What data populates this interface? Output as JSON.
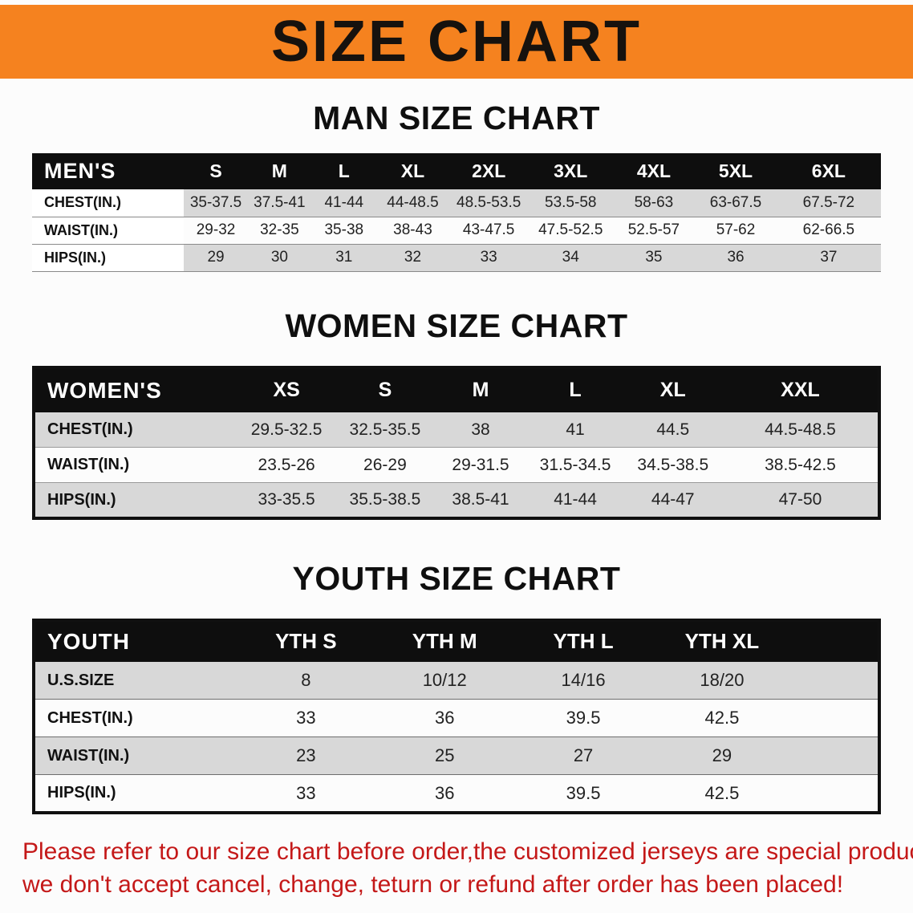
{
  "banner": {
    "title": "SIZE CHART",
    "bg_color": "#f5821f",
    "text_color": "#16120e"
  },
  "sections": [
    {
      "heading": "MAN SIZE CHART",
      "table": {
        "header": [
          "MEN'S",
          "S",
          "M",
          "L",
          "XL",
          "2XL",
          "3XL",
          "4XL",
          "5XL",
          "6XL"
        ],
        "rows": [
          [
            "CHEST(IN.)",
            "35-37.5",
            "37.5-41",
            "41-44",
            "44-48.5",
            "48.5-53.5",
            "53.5-58",
            "58-63",
            "63-67.5",
            "67.5-72"
          ],
          [
            "WAIST(IN.)",
            "29-32",
            "32-35",
            "35-38",
            "38-43",
            "43-47.5",
            "47.5-52.5",
            "52.5-57",
            "57-62",
            "62-66.5"
          ],
          [
            "HIPS(IN.)",
            "29",
            "30",
            "31",
            "32",
            "33",
            "34",
            "35",
            "36",
            "37"
          ]
        ]
      }
    },
    {
      "heading": "WOMEN SIZE CHART",
      "table": {
        "header": [
          "WOMEN'S",
          "XS",
          "S",
          "M",
          "L",
          "XL",
          "XXL"
        ],
        "rows": [
          [
            "CHEST(IN.)",
            "29.5-32.5",
            "32.5-35.5",
            "38",
            "41",
            "44.5",
            "44.5-48.5"
          ],
          [
            "WAIST(IN.)",
            "23.5-26",
            "26-29",
            "29-31.5",
            "31.5-34.5",
            "34.5-38.5",
            "38.5-42.5"
          ],
          [
            "HIPS(IN.)",
            "33-35.5",
            "35.5-38.5",
            "38.5-41",
            "41-44",
            "44-47",
            "47-50"
          ]
        ]
      }
    },
    {
      "heading": "YOUTH SIZE CHART",
      "table": {
        "header": [
          "YOUTH",
          "YTH S",
          "YTH M",
          "YTH L",
          "YTH XL"
        ],
        "rows": [
          [
            "U.S.SIZE",
            "8",
            "10/12",
            "14/16",
            "18/20"
          ],
          [
            "CHEST(IN.)",
            "33",
            "36",
            "39.5",
            "42.5"
          ],
          [
            "WAIST(IN.)",
            "23",
            "25",
            "27",
            "29"
          ],
          [
            "HIPS(IN.)",
            "33",
            "36",
            "39.5",
            "42.5"
          ]
        ]
      }
    }
  ],
  "footer": {
    "line1": "Please refer to our size chart before order,the customized jerseys are special products,",
    "line2": "we don't accept cancel, change, teturn or refund after order has been placed!",
    "text_color": "#c41818"
  }
}
